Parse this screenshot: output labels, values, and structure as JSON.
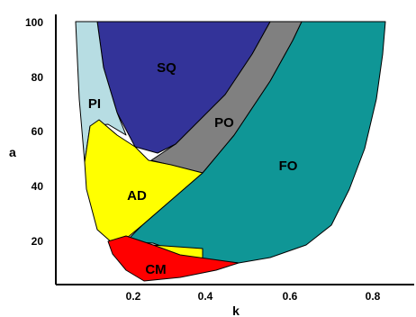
{
  "axes": {
    "xlabel": "k",
    "ylabel": "a",
    "xticks": [
      "0.2",
      "0.4",
      "0.6",
      "0.8"
    ],
    "yticks": [
      "20",
      "40",
      "60",
      "80",
      "100"
    ]
  },
  "regions": [
    {
      "key": "pi",
      "label": "PI",
      "color": "#b7dde3"
    },
    {
      "key": "sq",
      "label": "SQ",
      "color": "#333399"
    },
    {
      "key": "po",
      "label": "PO",
      "color": "#808080"
    },
    {
      "key": "fo",
      "label": "FO",
      "color": "#0f9696"
    },
    {
      "key": "ad",
      "label": "AD",
      "color": "#ffff00"
    },
    {
      "key": "cm",
      "label": "CM",
      "color": "#ff0000"
    }
  ]
}
